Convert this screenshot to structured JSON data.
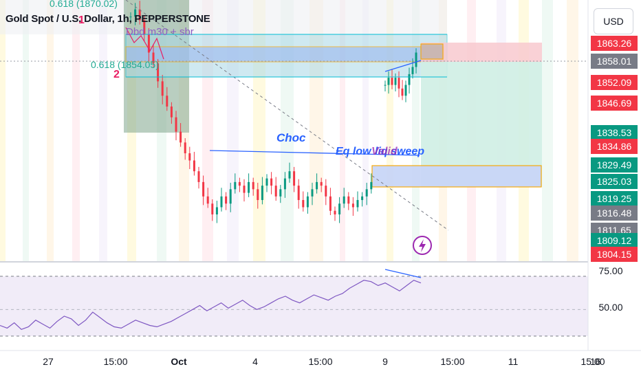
{
  "header": {
    "title": "Gold Spot / U.S. Dollar, 1h, PEPPERSTONE",
    "currency_button": "USD"
  },
  "annotations": {
    "fib_top": "0.618 (1870.02)",
    "fib_mid": "0.618 (1854.05)",
    "pattern_number_1": "1",
    "pattern_number_2": "2",
    "dbd_text": "Dbd m30 + sbr",
    "choc": "Choc",
    "eq_low": "Eq low",
    "liquidity_sweep": "liq sweep",
    "valid_overlap": "Valid"
  },
  "colors": {
    "up": "#089981",
    "down": "#f23645",
    "rsi": "#7e57c2",
    "annotation_blue": "#2962ff",
    "zone_orange": "#f7a600",
    "fib_green": "#22ab94",
    "teal_line": "#00bcd4"
  },
  "chart_data": [
    {
      "type": "candlestick",
      "symbol": "XAUUSD",
      "timeframe": "1h",
      "xlabels": [
        "27",
        "15:00",
        "Oct",
        "4",
        "15:00",
        "9",
        "15:00",
        "11",
        "15:00",
        "16"
      ],
      "price_axis_labels": [
        {
          "value": "1863.26",
          "role": "zone_top",
          "color": "#f23645"
        },
        {
          "value": "1858.01",
          "role": "last_price",
          "color": "#787b86"
        },
        {
          "value": "1852.09",
          "role": "level",
          "color": "#f23645"
        },
        {
          "value": "1846.69",
          "role": "level",
          "color": "#f23645"
        },
        {
          "value": "1838.53",
          "role": "level",
          "color": "#089981"
        },
        {
          "value": "1834.86",
          "role": "level",
          "color": "#f23645"
        },
        {
          "value": "1829.49",
          "role": "level",
          "color": "#089981"
        },
        {
          "value": "1825.03",
          "role": "level",
          "color": "#089981"
        },
        {
          "value": "1819.25",
          "role": "level",
          "color": "#089981"
        },
        {
          "value": "1816.48",
          "role": "level",
          "color": "#787b86"
        },
        {
          "value": "1811.65",
          "role": "level",
          "color": "#787b86"
        },
        {
          "value": "1809.12",
          "role": "level",
          "color": "#089981"
        },
        {
          "value": "1804.15",
          "role": "level",
          "color": "#f23645"
        }
      ],
      "close_path": [
        1868,
        1870,
        1867,
        1863,
        1858,
        1855,
        1850,
        1846,
        1843,
        1840,
        1836,
        1833,
        1830,
        1828,
        1825,
        1822,
        1818,
        1816,
        1813,
        1815,
        1818,
        1816,
        1820,
        1822,
        1821,
        1819,
        1822,
        1820,
        1817,
        1821,
        1823,
        1821,
        1818,
        1820,
        1823,
        1825,
        1821,
        1817,
        1815,
        1818,
        1820,
        1822,
        1821,
        1818,
        1814,
        1813,
        1816,
        1818,
        1816,
        1815,
        1817,
        1818,
        1820,
        1822
      ],
      "post_gap_path": [
        1849,
        1851,
        1849,
        1851,
        1848,
        1846,
        1849,
        1852,
        1854,
        1858
      ]
    },
    {
      "type": "line",
      "indicator": "RSI",
      "levels": [
        "75.00",
        "50.00"
      ],
      "values": [
        38,
        36,
        40,
        35,
        37,
        42,
        39,
        36,
        41,
        45,
        43,
        38,
        42,
        48,
        44,
        40,
        37,
        36,
        39,
        42,
        40,
        38,
        37,
        39,
        41,
        44,
        47,
        50,
        53,
        49,
        52,
        55,
        51,
        54,
        57,
        53,
        50,
        52,
        55,
        58,
        60,
        57,
        55,
        58,
        61,
        59,
        57,
        60,
        62,
        66,
        69,
        72,
        71,
        68,
        70,
        67,
        64,
        68,
        72,
        70
      ]
    }
  ]
}
